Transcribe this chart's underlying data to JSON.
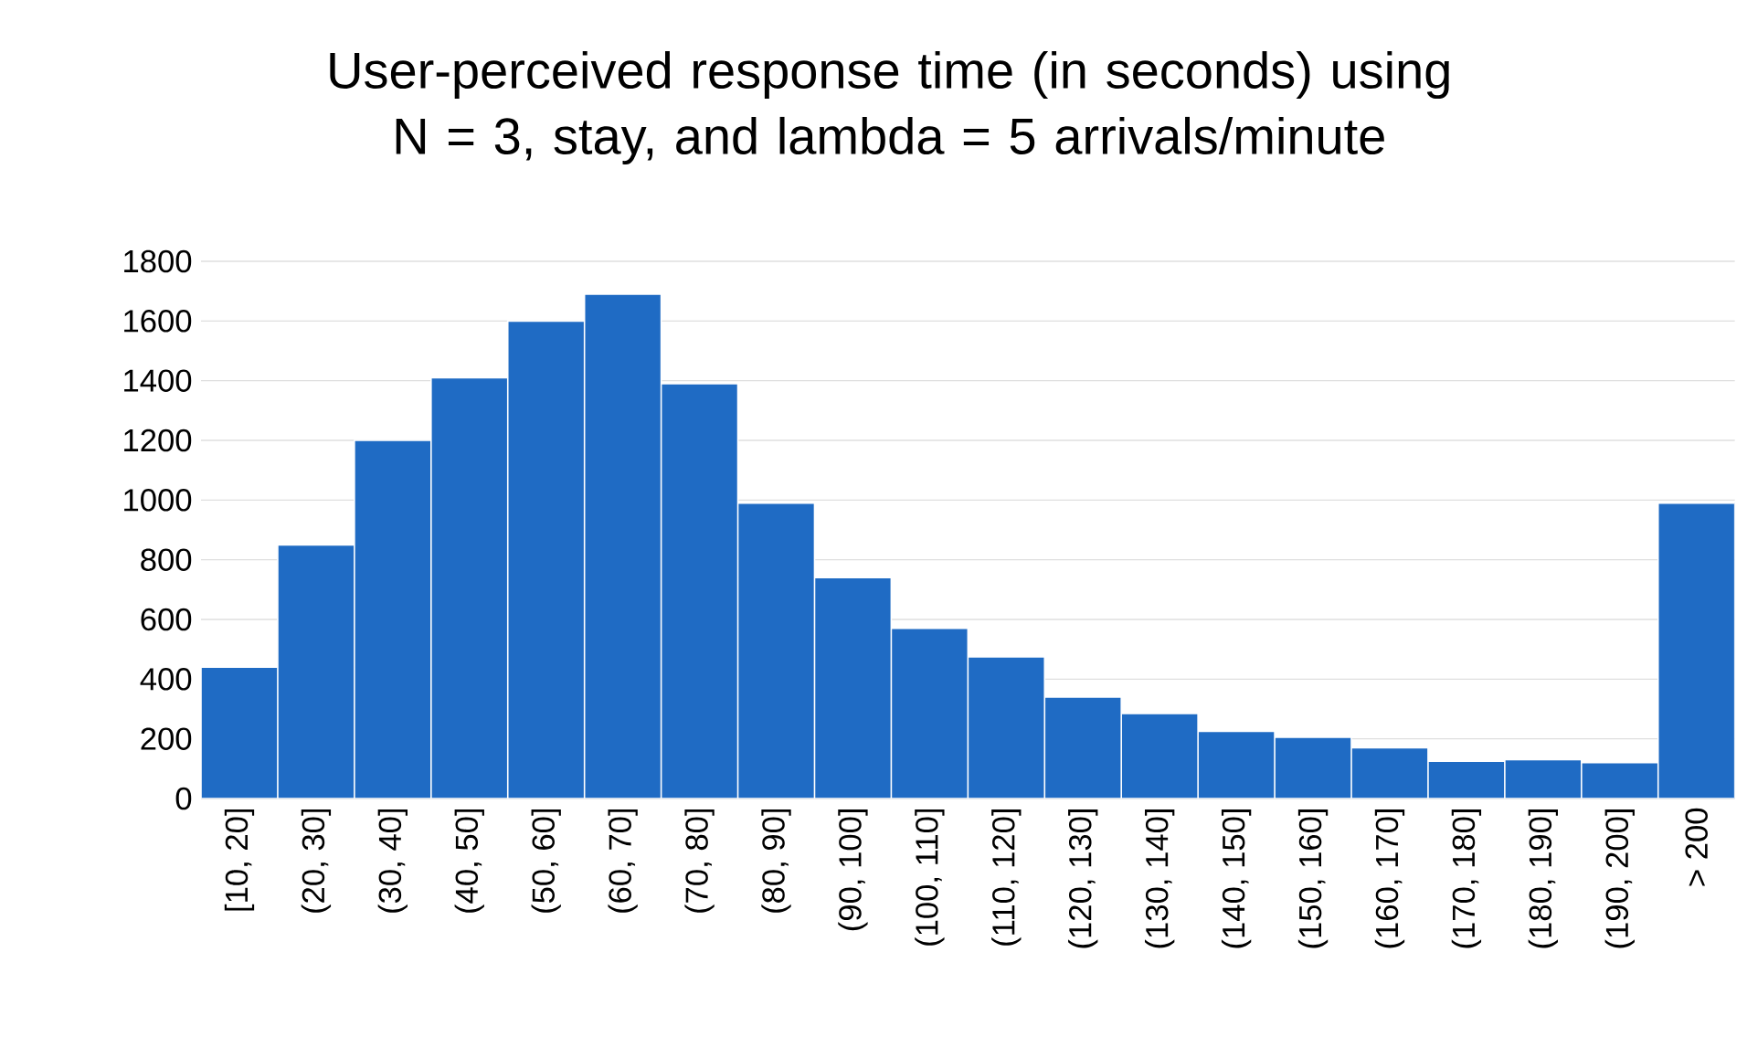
{
  "chart_data": {
    "type": "bar",
    "title": "User-perceived response time (in seconds) using N = 3, stay, and lambda = 5 arrivals/minute",
    "categories": [
      "[10, 20]",
      "(20, 30]",
      "(30, 40]",
      "(40, 50]",
      "(50, 60]",
      "(60, 70]",
      "(70, 80]",
      "(80, 90]",
      "(90, 100]",
      "(100, 110]",
      "(110, 120]",
      "(120, 130]",
      "(130, 140]",
      "(140, 150]",
      "(150, 160]",
      "(160, 170]",
      "(170, 180]",
      "(180, 190]",
      "(190, 200]",
      "> 200"
    ],
    "values": [
      440,
      850,
      1200,
      1410,
      1600,
      1690,
      1390,
      990,
      740,
      570,
      475,
      340,
      285,
      225,
      205,
      170,
      125,
      130,
      120,
      990
    ],
    "color": "#1f6bc4",
    "ylim": [
      0,
      1800
    ],
    "yticks": [
      0,
      200,
      400,
      600,
      800,
      1000,
      1200,
      1400,
      1600,
      1800
    ],
    "grid": "y"
  }
}
